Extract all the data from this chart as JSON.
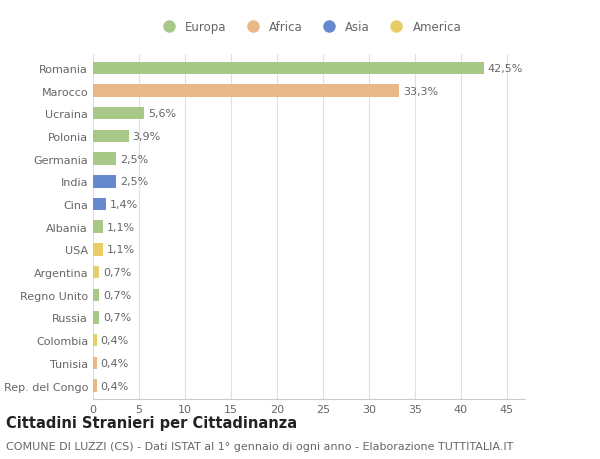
{
  "countries": [
    "Romania",
    "Marocco",
    "Ucraina",
    "Polonia",
    "Germania",
    "India",
    "Cina",
    "Albania",
    "USA",
    "Argentina",
    "Regno Unito",
    "Russia",
    "Colombia",
    "Tunisia",
    "Rep. del Congo"
  ],
  "values": [
    42.5,
    33.3,
    5.6,
    3.9,
    2.5,
    2.5,
    1.4,
    1.1,
    1.1,
    0.7,
    0.7,
    0.7,
    0.4,
    0.4,
    0.4
  ],
  "labels": [
    "42,5%",
    "33,3%",
    "5,6%",
    "3,9%",
    "2,5%",
    "2,5%",
    "1,4%",
    "1,1%",
    "1,1%",
    "0,7%",
    "0,7%",
    "0,7%",
    "0,4%",
    "0,4%",
    "0,4%"
  ],
  "continents": [
    "Europa",
    "Africa",
    "Europa",
    "Europa",
    "Europa",
    "Asia",
    "Asia",
    "Europa",
    "America",
    "America",
    "Europa",
    "Europa",
    "America",
    "Africa",
    "Africa"
  ],
  "continent_colors": {
    "Europa": "#a8c888",
    "Africa": "#e8b888",
    "Asia": "#6688cc",
    "America": "#e8cc66"
  },
  "legend_order": [
    "Europa",
    "Africa",
    "Asia",
    "America"
  ],
  "background_color": "#ffffff",
  "grid_color": "#e0e0e0",
  "xlim": [
    0,
    47
  ],
  "xticks": [
    0,
    5,
    10,
    15,
    20,
    25,
    30,
    35,
    40,
    45
  ],
  "title": "Cittadini Stranieri per Cittadinanza",
  "subtitle": "COMUNE DI LUZZI (CS) - Dati ISTAT al 1° gennaio di ogni anno - Elaborazione TUTTITALIA.IT",
  "title_fontsize": 10.5,
  "subtitle_fontsize": 8,
  "label_fontsize": 8,
  "tick_fontsize": 8,
  "legend_fontsize": 8.5
}
